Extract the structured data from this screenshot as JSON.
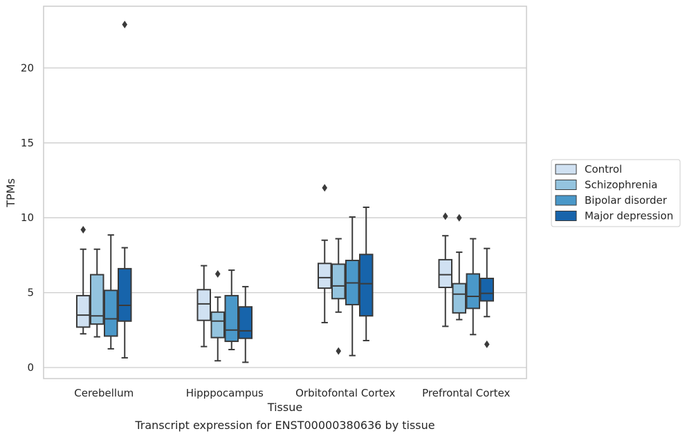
{
  "chart_data": {
    "type": "boxplot",
    "title": "",
    "caption": "Transcript expression for ENST00000380636 by tissue",
    "xlabel": "Tissue",
    "ylabel": "TPMs",
    "ylim": [
      -0.7,
      24.2
    ],
    "yticks": [
      0,
      5,
      10,
      15,
      20
    ],
    "grid": "horizontal",
    "legend_position": "right",
    "categories": [
      "Cerebellum",
      "Hipppocampus",
      "Orbitofontal Cortex",
      "Prefrontal Cortex"
    ],
    "series": [
      {
        "name": "Control",
        "color": "#d0e1f2",
        "boxes": [
          {
            "whisker_low": 2.25,
            "q1": 2.7,
            "median": 3.5,
            "q3": 4.8,
            "whisker_high": 7.9,
            "outliers": [
              9.2
            ]
          },
          {
            "whisker_low": 1.4,
            "q1": 3.15,
            "median": 4.25,
            "q3": 5.2,
            "whisker_high": 6.8,
            "outliers": []
          },
          {
            "whisker_low": 3.0,
            "q1": 5.3,
            "median": 6.0,
            "q3": 6.95,
            "whisker_high": 8.5,
            "outliers": [
              12.0
            ]
          },
          {
            "whisker_low": 2.75,
            "q1": 5.35,
            "median": 6.2,
            "q3": 7.2,
            "whisker_high": 8.8,
            "outliers": [
              10.1
            ]
          }
        ]
      },
      {
        "name": "Schizophrenia",
        "color": "#94c4df",
        "boxes": [
          {
            "whisker_low": 2.05,
            "q1": 2.9,
            "median": 3.45,
            "q3": 6.2,
            "whisker_high": 7.9,
            "outliers": []
          },
          {
            "whisker_low": 0.45,
            "q1": 2.0,
            "median": 3.1,
            "q3": 3.7,
            "whisker_high": 4.7,
            "outliers": [
              6.25
            ]
          },
          {
            "whisker_low": 3.7,
            "q1": 4.6,
            "median": 5.45,
            "q3": 6.9,
            "whisker_high": 8.6,
            "outliers": [
              1.1
            ]
          },
          {
            "whisker_low": 3.2,
            "q1": 3.65,
            "median": 4.9,
            "q3": 5.6,
            "whisker_high": 7.7,
            "outliers": [
              10.0
            ]
          }
        ]
      },
      {
        "name": "Bipolar disorder",
        "color": "#4a98c9",
        "boxes": [
          {
            "whisker_low": 1.25,
            "q1": 2.1,
            "median": 3.25,
            "q3": 5.15,
            "whisker_high": 8.85,
            "outliers": []
          },
          {
            "whisker_low": 1.2,
            "q1": 1.75,
            "median": 2.5,
            "q3": 4.8,
            "whisker_high": 6.5,
            "outliers": []
          },
          {
            "whisker_low": 0.8,
            "q1": 4.2,
            "median": 5.65,
            "q3": 7.15,
            "whisker_high": 10.05,
            "outliers": []
          },
          {
            "whisker_low": 2.2,
            "q1": 3.95,
            "median": 4.75,
            "q3": 6.25,
            "whisker_high": 8.6,
            "outliers": []
          }
        ]
      },
      {
        "name": "Major depression",
        "color": "#1764ab",
        "boxes": [
          {
            "whisker_low": 0.65,
            "q1": 3.1,
            "median": 4.15,
            "q3": 6.6,
            "whisker_high": 8.0,
            "outliers": [
              22.9
            ]
          },
          {
            "whisker_low": 0.35,
            "q1": 1.95,
            "median": 2.45,
            "q3": 4.05,
            "whisker_high": 5.4,
            "outliers": []
          },
          {
            "whisker_low": 1.8,
            "q1": 3.45,
            "median": 5.6,
            "q3": 7.55,
            "whisker_high": 10.7,
            "outliers": []
          },
          {
            "whisker_low": 3.4,
            "q1": 4.45,
            "median": 4.95,
            "q3": 5.95,
            "whisker_high": 7.95,
            "outliers": [
              1.55
            ]
          }
        ]
      }
    ]
  }
}
